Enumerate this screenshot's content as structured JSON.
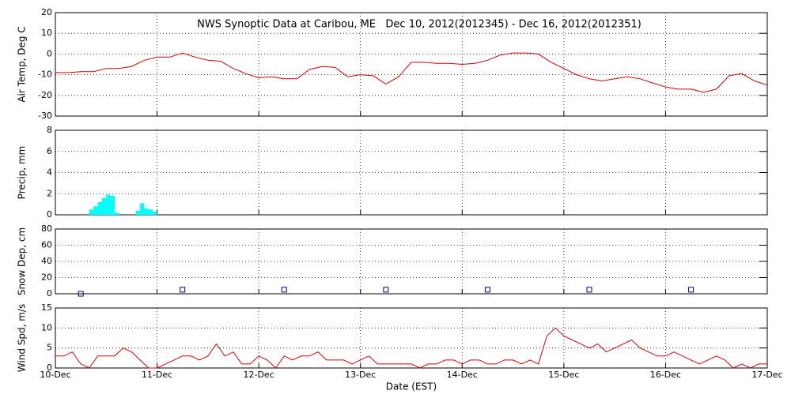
{
  "chart_data": [
    {
      "type": "line",
      "title": "NWS Synoptic Data at Caribou, ME   Dec 10, 2012(2012345) - Dec 16, 2012(2012351)",
      "ylabel": "Air Temp, Deg C",
      "color": "#cc0000",
      "x": [
        0,
        3,
        6,
        9,
        12,
        15,
        18,
        21,
        24,
        27,
        30,
        33,
        36,
        39,
        42,
        45,
        48,
        51,
        54,
        57,
        60,
        63,
        66,
        69,
        72,
        75,
        78,
        81,
        84,
        87,
        90,
        93,
        96,
        99,
        102,
        105,
        108,
        111,
        114,
        117,
        120,
        123,
        126,
        129,
        132,
        135,
        138,
        141,
        144,
        147,
        150,
        153,
        156,
        159,
        162,
        165,
        168
      ],
      "values": [
        -9,
        -9,
        -8.5,
        -8.5,
        -7,
        -7,
        -6,
        -3,
        -1.5,
        -1.5,
        0.5,
        -1.5,
        -3,
        -3.5,
        -7,
        -9.5,
        -11.5,
        -11,
        -12,
        -12,
        -7.5,
        -6,
        -6.5,
        -11,
        -10,
        -10.5,
        -14.5,
        -11,
        -4,
        -4,
        -4.5,
        -4.5,
        -5,
        -4.5,
        -3,
        -0.5,
        0.5,
        0.5,
        0,
        -4,
        -7,
        -10,
        -12,
        -13,
        -12,
        -11,
        -12,
        -14,
        -16,
        -17,
        -17,
        -18.5,
        -17,
        -10.5,
        -9.5,
        -13,
        -15
      ],
      "xlim": [
        0,
        168
      ],
      "xticks": [
        0,
        24,
        48,
        72,
        96,
        120,
        144,
        168
      ],
      "ylim": [
        -30,
        20
      ],
      "yticks": [
        -30,
        -20,
        -10,
        0,
        10,
        20
      ],
      "grid": true
    },
    {
      "type": "bar",
      "ylabel": "Precip, mm",
      "color": "#00ffff",
      "x": [
        8,
        9,
        10,
        11,
        12,
        13,
        14,
        19,
        20,
        21,
        22,
        23
      ],
      "values": [
        0.5,
        0.8,
        1.2,
        1.6,
        1.9,
        1.8,
        0.2,
        0.4,
        1.1,
        0.6,
        0.5,
        0.3
      ],
      "xlim": [
        0,
        168
      ],
      "xticks": [
        0,
        24,
        48,
        72,
        96,
        120,
        144,
        168
      ],
      "ylim": [
        0,
        8
      ],
      "yticks": [
        0,
        2,
        4,
        6,
        8
      ],
      "grid": true
    },
    {
      "type": "scatter",
      "ylabel": "Snow Dep, cm",
      "color": "#000080",
      "x": [
        6,
        30,
        54,
        78,
        102,
        126,
        150
      ],
      "values": [
        0,
        5,
        5,
        5,
        5,
        5,
        5
      ],
      "xlim": [
        0,
        168
      ],
      "xticks": [
        0,
        24,
        48,
        72,
        96,
        120,
        144,
        168
      ],
      "ylim": [
        0,
        80
      ],
      "yticks": [
        0,
        20,
        40,
        60,
        80
      ],
      "grid": true
    },
    {
      "type": "line",
      "ylabel": "Wind Spd, m/s",
      "xlabel": "Date (EST)",
      "color": "#dd0000",
      "x": [
        0,
        2,
        4,
        6,
        8,
        10,
        12,
        14,
        16,
        18,
        20,
        22,
        24,
        26,
        28,
        30,
        32,
        34,
        36,
        38,
        40,
        42,
        44,
        46,
        48,
        50,
        52,
        54,
        56,
        58,
        60,
        62,
        64,
        66,
        68,
        70,
        72,
        74,
        76,
        78,
        80,
        82,
        84,
        86,
        88,
        90,
        92,
        94,
        96,
        98,
        100,
        102,
        104,
        106,
        108,
        110,
        112,
        114,
        116,
        118,
        120,
        122,
        124,
        126,
        128,
        130,
        132,
        134,
        136,
        138,
        140,
        142,
        144,
        146,
        148,
        150,
        152,
        154,
        156,
        158,
        160,
        162,
        164,
        166,
        168
      ],
      "values": [
        3,
        3,
        4,
        1,
        0,
        3,
        3,
        3,
        5,
        4,
        2,
        0,
        0,
        1,
        2,
        3,
        3,
        2,
        3,
        6,
        3,
        4,
        1,
        1,
        3,
        2,
        0,
        3,
        2,
        3,
        3,
        4,
        2,
        2,
        2,
        1,
        2,
        3,
        1,
        1,
        1,
        1,
        1,
        0,
        1,
        1,
        2,
        2,
        1,
        2,
        2,
        1,
        1,
        2,
        2,
        1,
        2,
        1,
        8,
        10,
        8,
        7,
        6,
        5,
        6,
        4,
        5,
        6,
        7,
        5,
        4,
        3,
        3,
        4,
        3,
        2,
        1,
        2,
        3,
        2,
        0,
        1,
        0,
        1,
        1
      ],
      "xlim": [
        0,
        168
      ],
      "xticks": [
        {
          "value": 0,
          "label": "10-Dec"
        },
        {
          "value": 24,
          "label": "11-Dec"
        },
        {
          "value": 48,
          "label": "12-Dec"
        },
        {
          "value": 72,
          "label": "13-Dec"
        },
        {
          "value": 96,
          "label": "14-Dec"
        },
        {
          "value": 120,
          "label": "15-Dec"
        },
        {
          "value": 144,
          "label": "16-Dec"
        },
        {
          "value": 168,
          "label": "17-Dec"
        }
      ],
      "ylim": [
        0,
        15
      ],
      "yticks": [
        0,
        5,
        10,
        15
      ],
      "grid": true
    }
  ]
}
